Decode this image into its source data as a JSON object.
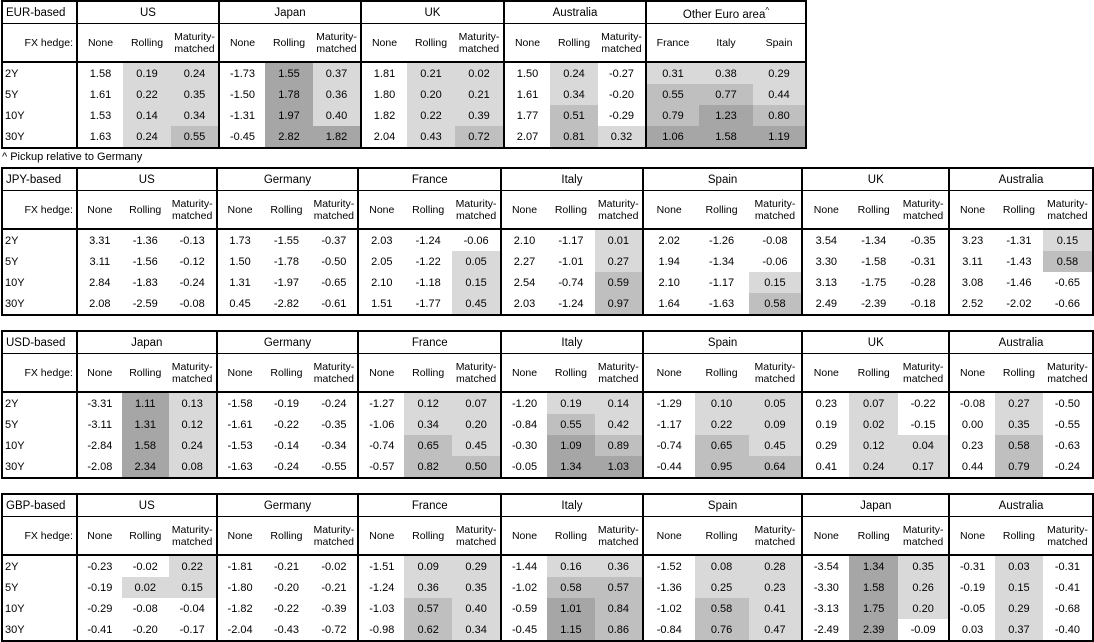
{
  "footnote": "^ Pickup relative to Germany",
  "shared": {
    "fx_hedge_label": "FX hedge:",
    "row_labels": [
      "2Y",
      "5Y",
      "10Y",
      "30Y"
    ],
    "hedge_options": [
      "None",
      "Rolling",
      "Maturity-matched"
    ]
  },
  "colors": {
    "shade_light": "#D9D9D9",
    "shade_medium": "#BFBFBF",
    "shade_dark": "#A6A6A6",
    "border": "#000000",
    "background": "#FFFFFF"
  },
  "shading": {
    "light_from": 0,
    "medium_from": 0.5,
    "dark_from": 1.0,
    "skip_first_column_unless_shade_all": true
  },
  "tables": [
    {
      "id": "eur",
      "title": "EUR-based",
      "groups": [
        {
          "name": "US",
          "cols": [
            "None",
            "Rolling",
            "Maturity-matched"
          ],
          "shade_all": false,
          "rows": [
            [
              "1.58",
              "0.19",
              "0.24"
            ],
            [
              "1.61",
              "0.22",
              "0.35"
            ],
            [
              "1.53",
              "0.14",
              "0.34"
            ],
            [
              "1.63",
              "0.24",
              "0.55"
            ]
          ]
        },
        {
          "name": "Japan",
          "cols": [
            "None",
            "Rolling",
            "Maturity-matched"
          ],
          "shade_all": false,
          "rows": [
            [
              "-1.73",
              "1.55",
              "0.37"
            ],
            [
              "-1.50",
              "1.78",
              "0.36"
            ],
            [
              "-1.31",
              "1.97",
              "0.40"
            ],
            [
              "-0.45",
              "2.82",
              "1.82"
            ]
          ]
        },
        {
          "name": "UK",
          "cols": [
            "None",
            "Rolling",
            "Maturity-matched"
          ],
          "shade_all": false,
          "rows": [
            [
              "1.81",
              "0.21",
              "0.02"
            ],
            [
              "1.80",
              "0.20",
              "0.21"
            ],
            [
              "1.82",
              "0.22",
              "0.39"
            ],
            [
              "2.04",
              "0.43",
              "0.72"
            ]
          ]
        },
        {
          "name": "Australia",
          "cols": [
            "None",
            "Rolling",
            "Maturity-matched"
          ],
          "shade_all": false,
          "rows": [
            [
              "1.50",
              "0.24",
              "-0.27"
            ],
            [
              "1.61",
              "0.34",
              "-0.20"
            ],
            [
              "1.77",
              "0.51",
              "-0.29"
            ],
            [
              "2.07",
              "0.81",
              "0.32"
            ]
          ]
        },
        {
          "name": "Other Euro area",
          "sup": "^",
          "cols": [
            "France",
            "Italy",
            "Spain"
          ],
          "shade_all": true,
          "rows": [
            [
              "0.31",
              "0.38",
              "0.29"
            ],
            [
              "0.55",
              "0.77",
              "0.44"
            ],
            [
              "0.79",
              "1.23",
              "0.80"
            ],
            [
              "1.06",
              "1.58",
              "1.19"
            ]
          ]
        }
      ]
    },
    {
      "id": "jpy",
      "title": "JPY-based",
      "groups": [
        {
          "name": "US",
          "cols": [
            "None",
            "Rolling",
            "Maturity-matched"
          ],
          "shade_all": false,
          "rows": [
            [
              "3.31",
              "-1.36",
              "-0.13"
            ],
            [
              "3.11",
              "-1.56",
              "-0.12"
            ],
            [
              "2.84",
              "-1.83",
              "-0.24"
            ],
            [
              "2.08",
              "-2.59",
              "-0.08"
            ]
          ]
        },
        {
          "name": "Germany",
          "cols": [
            "None",
            "Rolling",
            "Maturity-matched"
          ],
          "shade_all": false,
          "rows": [
            [
              "1.73",
              "-1.55",
              "-0.37"
            ],
            [
              "1.50",
              "-1.78",
              "-0.50"
            ],
            [
              "1.31",
              "-1.97",
              "-0.65"
            ],
            [
              "0.45",
              "-2.82",
              "-0.61"
            ]
          ]
        },
        {
          "name": "France",
          "cols": [
            "None",
            "Rolling",
            "Maturity-matched"
          ],
          "shade_all": false,
          "rows": [
            [
              "2.03",
              "-1.24",
              "-0.06"
            ],
            [
              "2.05",
              "-1.22",
              "0.05"
            ],
            [
              "2.10",
              "-1.18",
              "0.15"
            ],
            [
              "1.51",
              "-1.77",
              "0.45"
            ]
          ]
        },
        {
          "name": "Italy",
          "cols": [
            "None",
            "Rolling",
            "Maturity-matched"
          ],
          "shade_all": false,
          "rows": [
            [
              "2.10",
              "-1.17",
              "0.01"
            ],
            [
              "2.27",
              "-1.01",
              "0.27"
            ],
            [
              "2.54",
              "-0.74",
              "0.59"
            ],
            [
              "2.03",
              "-1.24",
              "0.97"
            ]
          ]
        },
        {
          "name": "Spain",
          "cols": [
            "None",
            "Rolling",
            "Maturity-matched"
          ],
          "shade_all": false,
          "rows": [
            [
              "2.02",
              "-1.26",
              "-0.08"
            ],
            [
              "1.94",
              "-1.34",
              "-0.06"
            ],
            [
              "2.10",
              "-1.17",
              "0.15"
            ],
            [
              "1.64",
              "-1.63",
              "0.58"
            ]
          ]
        },
        {
          "name": "UK",
          "cols": [
            "None",
            "Rolling",
            "Maturity-matched"
          ],
          "shade_all": false,
          "rows": [
            [
              "3.54",
              "-1.34",
              "-0.35"
            ],
            [
              "3.30",
              "-1.58",
              "-0.31"
            ],
            [
              "3.13",
              "-1.75",
              "-0.28"
            ],
            [
              "2.49",
              "-2.39",
              "-0.18"
            ]
          ]
        },
        {
          "name": "Australia",
          "cols": [
            "None",
            "Rolling",
            "Maturity-matched"
          ],
          "shade_all": false,
          "rows": [
            [
              "3.23",
              "-1.31",
              "0.15"
            ],
            [
              "3.11",
              "-1.43",
              "0.58"
            ],
            [
              "3.08",
              "-1.46",
              "-0.65"
            ],
            [
              "2.52",
              "-2.02",
              "-0.66"
            ]
          ]
        }
      ]
    },
    {
      "id": "usd",
      "title": "USD-based",
      "groups": [
        {
          "name": "Japan",
          "cols": [
            "None",
            "Rolling",
            "Maturity-matched"
          ],
          "shade_all": false,
          "rows": [
            [
              "-3.31",
              "1.11",
              "0.13"
            ],
            [
              "-3.11",
              "1.31",
              "0.12"
            ],
            [
              "-2.84",
              "1.58",
              "0.24"
            ],
            [
              "-2.08",
              "2.34",
              "0.08"
            ]
          ]
        },
        {
          "name": "Germany",
          "cols": [
            "None",
            "Rolling",
            "Maturity-matched"
          ],
          "shade_all": false,
          "rows": [
            [
              "-1.58",
              "-0.19",
              "-0.24"
            ],
            [
              "-1.61",
              "-0.22",
              "-0.35"
            ],
            [
              "-1.53",
              "-0.14",
              "-0.34"
            ],
            [
              "-1.63",
              "-0.24",
              "-0.55"
            ]
          ]
        },
        {
          "name": "France",
          "cols": [
            "None",
            "Rolling",
            "Maturity-matched"
          ],
          "shade_all": false,
          "rows": [
            [
              "-1.27",
              "0.12",
              "0.07"
            ],
            [
              "-1.06",
              "0.34",
              "0.20"
            ],
            [
              "-0.74",
              "0.65",
              "0.45"
            ],
            [
              "-0.57",
              "0.82",
              "0.50"
            ]
          ]
        },
        {
          "name": "Italy",
          "cols": [
            "None",
            "Rolling",
            "Maturity-matched"
          ],
          "shade_all": false,
          "rows": [
            [
              "-1.20",
              "0.19",
              "0.14"
            ],
            [
              "-0.84",
              "0.55",
              "0.42"
            ],
            [
              "-0.30",
              "1.09",
              "0.89"
            ],
            [
              "-0.05",
              "1.34",
              "1.03"
            ]
          ]
        },
        {
          "name": "Spain",
          "cols": [
            "None",
            "Rolling",
            "Maturity-matched"
          ],
          "shade_all": false,
          "rows": [
            [
              "-1.29",
              "0.10",
              "0.05"
            ],
            [
              "-1.17",
              "0.22",
              "0.09"
            ],
            [
              "-0.74",
              "0.65",
              "0.45"
            ],
            [
              "-0.44",
              "0.95",
              "0.64"
            ]
          ]
        },
        {
          "name": "UK",
          "cols": [
            "None",
            "Rolling",
            "Maturity-matched"
          ],
          "shade_all": false,
          "rows": [
            [
              "0.23",
              "0.07",
              "-0.22"
            ],
            [
              "0.19",
              "0.02",
              "-0.15"
            ],
            [
              "0.29",
              "0.12",
              "0.04"
            ],
            [
              "0.41",
              "0.24",
              "0.17"
            ]
          ]
        },
        {
          "name": "Australia",
          "cols": [
            "None",
            "Rolling",
            "Maturity-matched"
          ],
          "shade_all": false,
          "rows": [
            [
              "-0.08",
              "0.27",
              "-0.50"
            ],
            [
              "0.00",
              "0.35",
              "-0.55"
            ],
            [
              "0.23",
              "0.58",
              "-0.63"
            ],
            [
              "0.44",
              "0.79",
              "-0.24"
            ]
          ]
        }
      ]
    },
    {
      "id": "gbp",
      "title": "GBP-based",
      "groups": [
        {
          "name": "US",
          "cols": [
            "None",
            "Rolling",
            "Maturity-matched"
          ],
          "shade_all": false,
          "rows": [
            [
              "-0.23",
              "-0.02",
              "0.22"
            ],
            [
              "-0.19",
              "0.02",
              "0.15"
            ],
            [
              "-0.29",
              "-0.08",
              "-0.04"
            ],
            [
              "-0.41",
              "-0.20",
              "-0.17"
            ]
          ]
        },
        {
          "name": "Germany",
          "cols": [
            "None",
            "Rolling",
            "Maturity-matched"
          ],
          "shade_all": false,
          "rows": [
            [
              "-1.81",
              "-0.21",
              "-0.02"
            ],
            [
              "-1.80",
              "-0.20",
              "-0.21"
            ],
            [
              "-1.82",
              "-0.22",
              "-0.39"
            ],
            [
              "-2.04",
              "-0.43",
              "-0.72"
            ]
          ]
        },
        {
          "name": "France",
          "cols": [
            "None",
            "Rolling",
            "Maturity-matched"
          ],
          "shade_all": false,
          "rows": [
            [
              "-1.51",
              "0.09",
              "0.29"
            ],
            [
              "-1.24",
              "0.36",
              "0.35"
            ],
            [
              "-1.03",
              "0.57",
              "0.40"
            ],
            [
              "-0.98",
              "0.62",
              "0.34"
            ]
          ]
        },
        {
          "name": "Italy",
          "cols": [
            "None",
            "Rolling",
            "Maturity-matched"
          ],
          "shade_all": false,
          "rows": [
            [
              "-1.44",
              "0.16",
              "0.36"
            ],
            [
              "-1.02",
              "0.58",
              "0.57"
            ],
            [
              "-0.59",
              "1.01",
              "0.84"
            ],
            [
              "-0.45",
              "1.15",
              "0.86"
            ]
          ]
        },
        {
          "name": "Spain",
          "cols": [
            "None",
            "Rolling",
            "Maturity-matched"
          ],
          "shade_all": false,
          "rows": [
            [
              "-1.52",
              "0.08",
              "0.28"
            ],
            [
              "-1.36",
              "0.25",
              "0.23"
            ],
            [
              "-1.02",
              "0.58",
              "0.41"
            ],
            [
              "-0.84",
              "0.76",
              "0.47"
            ]
          ]
        },
        {
          "name": "Japan",
          "cols": [
            "None",
            "Rolling",
            "Maturity-matched"
          ],
          "shade_all": false,
          "rows": [
            [
              "-3.54",
              "1.34",
              "0.35"
            ],
            [
              "-3.30",
              "1.58",
              "0.26"
            ],
            [
              "-3.13",
              "1.75",
              "0.20"
            ],
            [
              "-2.49",
              "2.39",
              "-0.09"
            ]
          ]
        },
        {
          "name": "Australia",
          "cols": [
            "None",
            "Rolling",
            "Maturity-matched"
          ],
          "shade_all": false,
          "rows": [
            [
              "-0.31",
              "0.03",
              "-0.31"
            ],
            [
              "-0.19",
              "0.15",
              "-0.41"
            ],
            [
              "-0.05",
              "0.29",
              "-0.68"
            ],
            [
              "0.03",
              "0.37",
              "-0.40"
            ]
          ]
        }
      ]
    }
  ]
}
